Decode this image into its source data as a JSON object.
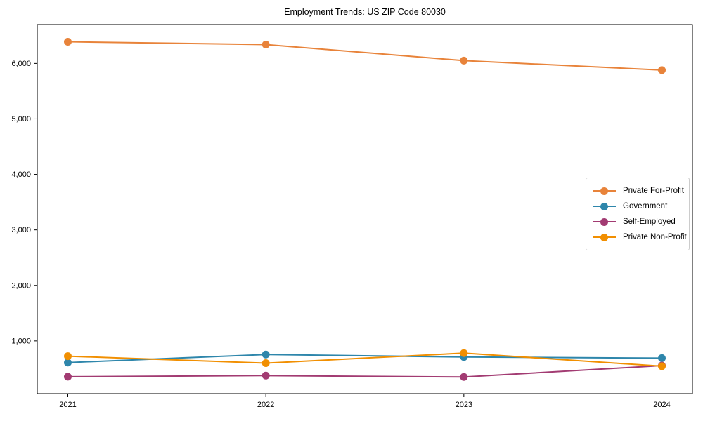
{
  "chart_data": {
    "type": "line",
    "title": "Employment Trends: US ZIP Code 80030",
    "categories": [
      "2021",
      "2022",
      "2023",
      "2024"
    ],
    "series": [
      {
        "name": "Private For-Profit",
        "color": "#E8833A",
        "values": [
          6390,
          6340,
          6050,
          5880
        ]
      },
      {
        "name": "Government",
        "color": "#2E86AB",
        "values": [
          610,
          755,
          710,
          690
        ]
      },
      {
        "name": "Self-Employed",
        "color": "#A23B72",
        "values": [
          355,
          375,
          350,
          555
        ]
      },
      {
        "name": "Private Non-Profit",
        "color": "#F18F01",
        "values": [
          725,
          600,
          780,
          545
        ]
      }
    ],
    "xlabel": "",
    "ylabel": "",
    "ylim": [
      50,
      6700
    ],
    "yticks": [
      1000,
      2000,
      3000,
      4000,
      5000,
      6000
    ],
    "ytick_labels": [
      "1,000",
      "2,000",
      "3,000",
      "4,000",
      "5,000",
      "6,000"
    ],
    "grid": false,
    "legend_position": "center right"
  },
  "style": {
    "background": "#ffffff",
    "spine_color": "#000000",
    "tick_color": "#000000",
    "legend_border": "#cccccc"
  }
}
